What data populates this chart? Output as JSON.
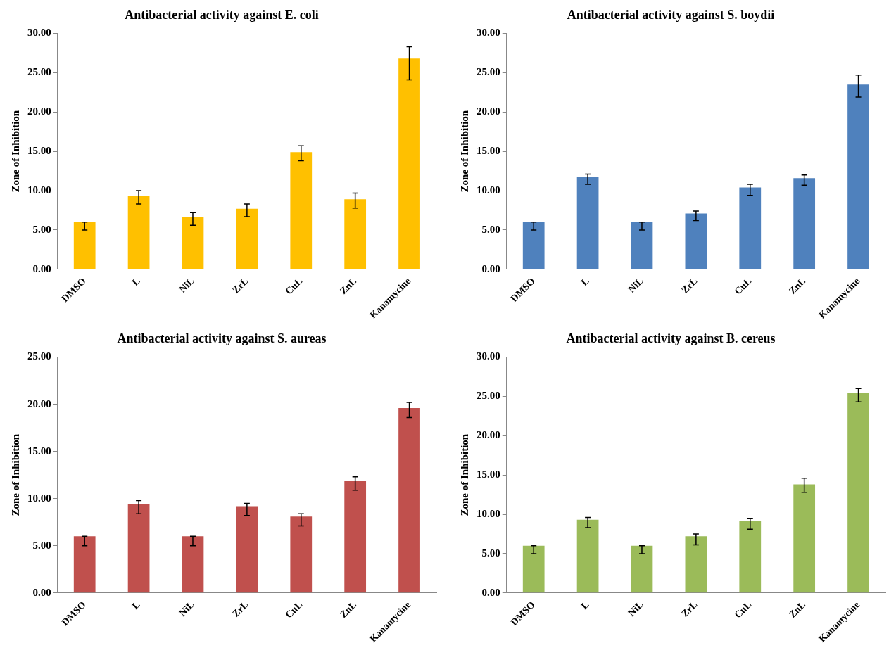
{
  "chart_data": [
    {
      "type": "bar",
      "title": "Antibacterial activity against E. coli",
      "ylabel": "Zone of Inhibition",
      "categories": [
        "DMSO",
        "L",
        "NiL",
        "ZrL",
        "CuL",
        "ZnL",
        "Kanamycine"
      ],
      "values": [
        6.0,
        9.3,
        6.7,
        7.7,
        14.9,
        8.9,
        26.8
      ],
      "color": "#ffc000",
      "errors": [
        [
          5.0,
          6.0
        ],
        [
          8.3,
          10.0
        ],
        [
          5.6,
          7.2
        ],
        [
          6.7,
          8.3
        ],
        [
          13.8,
          15.7
        ],
        [
          7.8,
          9.7
        ],
        [
          24.1,
          28.3
        ]
      ],
      "ylim": [
        0,
        30
      ],
      "yticks": [
        {
          "value": 0,
          "label": "0.00"
        },
        {
          "value": 5,
          "label": "5.00"
        },
        {
          "value": 10,
          "label": "10.00"
        },
        {
          "value": 15,
          "label": "15.00"
        },
        {
          "value": 20,
          "label": "20.00"
        },
        {
          "value": 25,
          "label": "25.00"
        },
        {
          "value": 30,
          "label": "30.00"
        }
      ],
      "grid": false,
      "legend": false
    },
    {
      "type": "bar",
      "title": "Antibacterial activity against S. boydii",
      "ylabel": "Zone of Inhibition",
      "categories": [
        "DMSO",
        "L",
        "NiL",
        "ZrL",
        "CuL",
        "ZnL",
        "Kanamycine"
      ],
      "values": [
        6.0,
        11.8,
        6.0,
        7.1,
        10.4,
        11.6,
        23.5
      ],
      "color": "#4f81bd",
      "errors": [
        [
          5.0,
          6.0
        ],
        [
          10.8,
          12.1
        ],
        [
          5.0,
          6.0
        ],
        [
          6.2,
          7.4
        ],
        [
          9.4,
          10.8
        ],
        [
          10.7,
          12.0
        ],
        [
          21.9,
          24.7
        ]
      ],
      "ylim": [
        0,
        30
      ],
      "yticks": [
        {
          "value": 0,
          "label": "0.00"
        },
        {
          "value": 5,
          "label": "5.00"
        },
        {
          "value": 10,
          "label": "10.00"
        },
        {
          "value": 15,
          "label": "15.00"
        },
        {
          "value": 20,
          "label": "20.00"
        },
        {
          "value": 25,
          "label": "25.00"
        },
        {
          "value": 30,
          "label": "30.00"
        }
      ],
      "grid": false,
      "legend": false
    },
    {
      "type": "bar",
      "title": "Antibacterial activity against S. aureas",
      "ylabel": "Zone of Inhibition",
      "categories": [
        "DMSO",
        "L",
        "NiL",
        "ZrL",
        "CuL",
        "ZnL",
        "Kanamycine"
      ],
      "values": [
        6.0,
        9.4,
        6.0,
        9.2,
        8.1,
        11.9,
        19.6
      ],
      "color": "#c0504d",
      "errors": [
        [
          5.0,
          6.0
        ],
        [
          8.4,
          9.8
        ],
        [
          5.0,
          6.0
        ],
        [
          8.2,
          9.5
        ],
        [
          7.1,
          8.4
        ],
        [
          10.9,
          12.3
        ],
        [
          18.6,
          20.2
        ]
      ],
      "ylim": [
        0,
        25
      ],
      "yticks": [
        {
          "value": 0,
          "label": "0.00"
        },
        {
          "value": 5,
          "label": "5.00"
        },
        {
          "value": 10,
          "label": "10.00"
        },
        {
          "value": 15,
          "label": "15.00"
        },
        {
          "value": 20,
          "label": "20.00"
        },
        {
          "value": 25,
          "label": "25.00"
        }
      ],
      "grid": false,
      "legend": false
    },
    {
      "type": "bar",
      "title": "Antibacterial activity against B. cereus",
      "ylabel": "Zone of Inhibition",
      "categories": [
        "DMSO",
        "L",
        "NiL",
        "ZrL",
        "CuL",
        "ZnL",
        "Kanamycine"
      ],
      "values": [
        6.0,
        9.3,
        6.0,
        7.2,
        9.2,
        13.8,
        25.4
      ],
      "color": "#9bbb59",
      "errors": [
        [
          5.0,
          6.0
        ],
        [
          8.3,
          9.6
        ],
        [
          5.0,
          6.0
        ],
        [
          6.1,
          7.5
        ],
        [
          8.1,
          9.5
        ],
        [
          12.8,
          14.6
        ],
        [
          24.3,
          26.0
        ]
      ],
      "ylim": [
        0,
        30
      ],
      "yticks": [
        {
          "value": 0,
          "label": "0.00"
        },
        {
          "value": 5,
          "label": "5.00"
        },
        {
          "value": 10,
          "label": "10.00"
        },
        {
          "value": 15,
          "label": "15.00"
        },
        {
          "value": 20,
          "label": "20.00"
        },
        {
          "value": 25,
          "label": "25.00"
        },
        {
          "value": 30,
          "label": "30.00"
        }
      ],
      "grid": false,
      "legend": false
    }
  ]
}
